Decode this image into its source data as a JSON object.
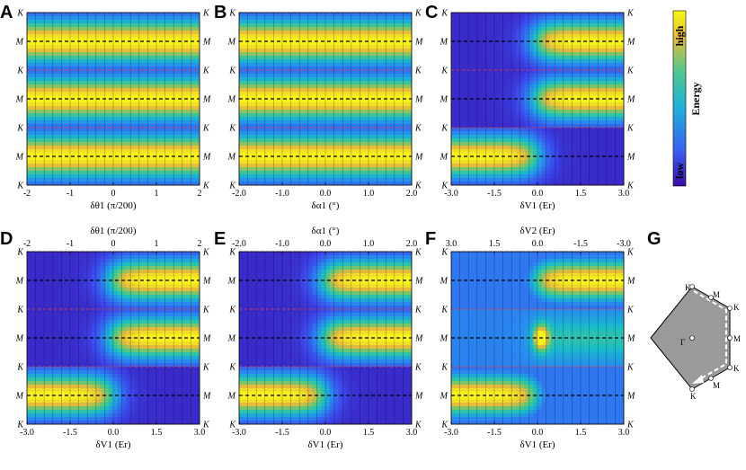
{
  "figure": {
    "panel_labels": [
      "A",
      "B",
      "C",
      "D",
      "E",
      "F",
      "G"
    ],
    "colorbar": {
      "high": "high",
      "low": "low",
      "label": "Energy"
    },
    "row_labels": [
      "K",
      "M",
      "K",
      "M",
      "K",
      "M",
      "K"
    ],
    "hexagon": {
      "center": "Γ",
      "vertex": "K",
      "edge": "M"
    }
  },
  "chart_data": [
    {
      "panel": "A",
      "type": "heatmap",
      "pattern": "uniform",
      "xlabel": "δθ1 (π/200)",
      "xlim": [
        -2,
        2
      ],
      "xticks": [
        "-2",
        "-1",
        "0",
        "1",
        "2"
      ],
      "ylabels": [
        "K",
        "M",
        "K",
        "M",
        "K",
        "M",
        "K"
      ]
    },
    {
      "panel": "B",
      "type": "heatmap",
      "pattern": "uniform",
      "xlabel": "δα1 (°)",
      "xlim": [
        -2.0,
        2.0
      ],
      "xticks": [
        "-2.0",
        "-1.0",
        "0.0",
        "1.0",
        "2.0"
      ],
      "ylabels": [
        "K",
        "M",
        "K",
        "M",
        "K",
        "M",
        "K"
      ]
    },
    {
      "panel": "C",
      "type": "heatmap",
      "pattern": "shift",
      "xlabel": "δV1 (Er)",
      "xlim": [
        -3.0,
        3.0
      ],
      "xticks": [
        "-3.0",
        "-1.5",
        "0.0",
        "1.5",
        "3.0"
      ],
      "ylabels": [
        "K",
        "M",
        "K",
        "M",
        "K",
        "M",
        "K"
      ]
    },
    {
      "panel": "D",
      "type": "heatmap",
      "pattern": "shift",
      "xlabel": "δV1 (Er)",
      "xlim": [
        -3.0,
        3.0
      ],
      "xticks": [
        "-3.0",
        "-1.5",
        "0.0",
        "1.5",
        "3.0"
      ],
      "top_xlabel": "δθ1 (π/200)",
      "top_xticks": [
        "-2",
        "-1",
        "0",
        "1",
        "2"
      ],
      "ylabels": [
        "K",
        "M",
        "K",
        "M",
        "K",
        "M",
        "K"
      ]
    },
    {
      "panel": "E",
      "type": "heatmap",
      "pattern": "shift",
      "xlabel": "δV1 (Er)",
      "xlim": [
        -3.0,
        3.0
      ],
      "xticks": [
        "-3.0",
        "-1.5",
        "0.0",
        "1.5",
        "3.0"
      ],
      "top_xlabel": "δα1 (°)",
      "top_xticks": [
        "-2.0",
        "-1.0",
        "0.0",
        "1.0",
        "2.0"
      ],
      "ylabels": [
        "K",
        "M",
        "K",
        "M",
        "K",
        "M",
        "K"
      ]
    },
    {
      "panel": "F",
      "type": "heatmap",
      "pattern": "shift-spot",
      "xlabel": "δV1 (Er)",
      "xlim": [
        -3.0,
        3.0
      ],
      "xticks": [
        "-3.0",
        "-1.5",
        "0.0",
        "1.5",
        "3.0"
      ],
      "top_xlabel": "δV2 (Er)",
      "top_xticks": [
        "3.0",
        "1.5",
        "0.0",
        "-1.5",
        "-3.0"
      ],
      "ylabels": [
        "K",
        "M",
        "K",
        "M",
        "K",
        "M",
        "K"
      ]
    }
  ]
}
